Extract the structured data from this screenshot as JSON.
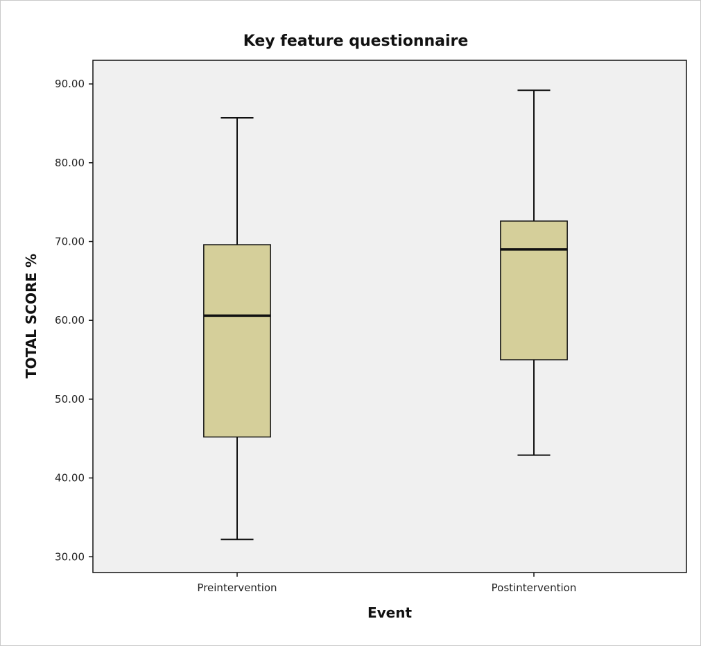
{
  "chart_data": {
    "type": "boxplot",
    "title": "Key feature questionnaire",
    "xlabel": "Event",
    "ylabel": "TOTAL SCORE %",
    "categories": [
      "Preintervention",
      "Postintervention"
    ],
    "boxes": [
      {
        "category": "Preintervention",
        "min": 32.2,
        "q1": 45.2,
        "median": 60.6,
        "q3": 69.6,
        "max": 85.7
      },
      {
        "category": "Postintervention",
        "min": 42.9,
        "q1": 55.0,
        "median": 69.0,
        "q3": 72.6,
        "max": 89.2
      }
    ],
    "ylim": [
      28.0,
      93.0
    ],
    "yticks": [
      30,
      40,
      50,
      60,
      70,
      80,
      90
    ],
    "ytick_labels": [
      "30.00",
      "40.00",
      "50.00",
      "60.00",
      "70.00",
      "80.00",
      "90.00"
    ],
    "grid": false,
    "colors": {
      "box_fill": "#d5cf9a",
      "plot_background": "#f0f0f0",
      "stroke": "#111111"
    }
  }
}
